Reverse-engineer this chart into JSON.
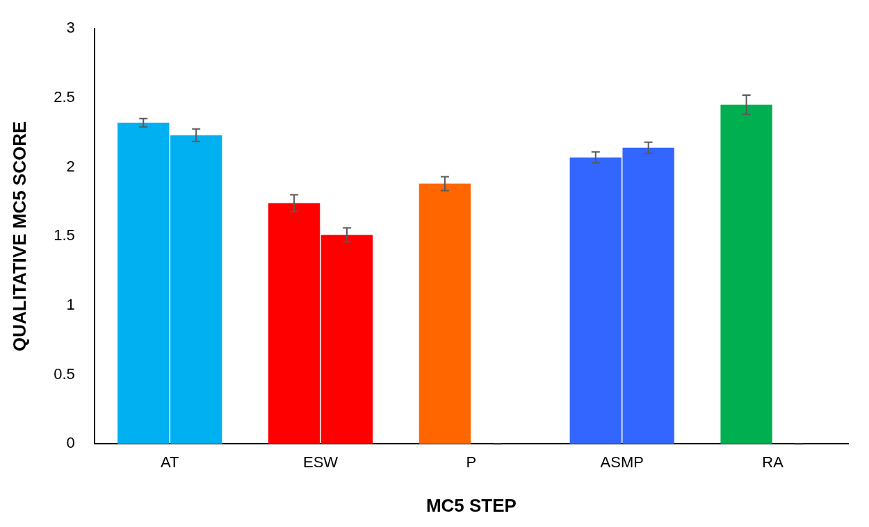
{
  "chart_data": {
    "type": "bar",
    "xlabel": "MC5 STEP",
    "ylabel": "QUALITATIVE MC5 SCORE",
    "categories": [
      "AT",
      "ESW",
      "P",
      "ASMP",
      "RA"
    ],
    "series": [
      {
        "colors": [
          "#00b0f0",
          "#ff0000",
          "#ff6600",
          "#3366ff",
          "#00b050"
        ],
        "values": [
          2.32,
          1.74,
          1.88,
          2.07,
          2.45
        ],
        "errors": [
          0.03,
          0.06,
          0.05,
          0.04,
          0.07
        ]
      },
      {
        "colors": [
          "#00b0f0",
          "#ff0000",
          "#ff6600",
          "#3366ff",
          "#00b050"
        ],
        "values": [
          2.23,
          1.51,
          0,
          2.14,
          0
        ],
        "errors": [
          0.045,
          0.05,
          0,
          0.04,
          0
        ]
      }
    ],
    "ylim": [
      0,
      3
    ],
    "yticks": [
      0,
      0.5,
      1,
      1.5,
      2,
      2.5,
      3
    ],
    "grid": false,
    "legend": false
  }
}
